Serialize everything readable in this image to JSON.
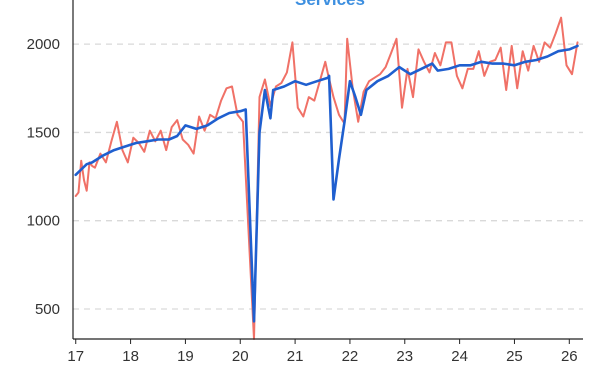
{
  "chart_data": {
    "type": "line",
    "title": "Services",
    "xlabel": "",
    "ylabel": "",
    "x_ticks": [
      17,
      18,
      19,
      20,
      21,
      22,
      23,
      24,
      25,
      26
    ],
    "y_ticks": [
      500,
      1000,
      1500,
      2000
    ],
    "xlim": [
      16.95,
      26.25
    ],
    "ylim": [
      330,
      2250
    ],
    "grid": "horizontal-dashed",
    "legend": "none",
    "series": [
      {
        "color": "#f07167",
        "values": [
          [
            17.0,
            1140
          ],
          [
            17.05,
            1160
          ],
          [
            17.1,
            1340
          ],
          [
            17.15,
            1230
          ],
          [
            17.2,
            1170
          ],
          [
            17.25,
            1330
          ],
          [
            17.3,
            1310
          ],
          [
            17.35,
            1300
          ],
          [
            17.45,
            1380
          ],
          [
            17.55,
            1330
          ],
          [
            17.65,
            1450
          ],
          [
            17.75,
            1560
          ],
          [
            17.85,
            1400
          ],
          [
            17.95,
            1330
          ],
          [
            18.05,
            1470
          ],
          [
            18.15,
            1440
          ],
          [
            18.25,
            1390
          ],
          [
            18.35,
            1510
          ],
          [
            18.45,
            1450
          ],
          [
            18.55,
            1510
          ],
          [
            18.65,
            1400
          ],
          [
            18.75,
            1530
          ],
          [
            18.85,
            1570
          ],
          [
            18.95,
            1460
          ],
          [
            19.05,
            1430
          ],
          [
            19.15,
            1380
          ],
          [
            19.25,
            1590
          ],
          [
            19.35,
            1510
          ],
          [
            19.45,
            1600
          ],
          [
            19.55,
            1580
          ],
          [
            19.65,
            1680
          ],
          [
            19.75,
            1750
          ],
          [
            19.85,
            1760
          ],
          [
            19.95,
            1600
          ],
          [
            20.05,
            1560
          ],
          [
            20.25,
            330
          ],
          [
            20.35,
            1700
          ],
          [
            20.45,
            1800
          ],
          [
            20.55,
            1650
          ],
          [
            20.65,
            1760
          ],
          [
            20.75,
            1780
          ],
          [
            20.85,
            1840
          ],
          [
            20.95,
            2010
          ],
          [
            21.05,
            1640
          ],
          [
            21.15,
            1590
          ],
          [
            21.25,
            1700
          ],
          [
            21.35,
            1680
          ],
          [
            21.45,
            1790
          ],
          [
            21.55,
            1900
          ],
          [
            21.6,
            1830
          ],
          [
            21.7,
            1700
          ],
          [
            21.8,
            1600
          ],
          [
            21.9,
            1550
          ],
          [
            21.95,
            2030
          ],
          [
            22.05,
            1750
          ],
          [
            22.15,
            1560
          ],
          [
            22.25,
            1730
          ],
          [
            22.35,
            1790
          ],
          [
            22.45,
            1810
          ],
          [
            22.55,
            1830
          ],
          [
            22.65,
            1870
          ],
          [
            22.75,
            1950
          ],
          [
            22.85,
            2030
          ],
          [
            22.95,
            1640
          ],
          [
            23.05,
            1860
          ],
          [
            23.15,
            1700
          ],
          [
            23.25,
            1970
          ],
          [
            23.35,
            1900
          ],
          [
            23.45,
            1840
          ],
          [
            23.55,
            1950
          ],
          [
            23.65,
            1880
          ],
          [
            23.75,
            2010
          ],
          [
            23.85,
            2010
          ],
          [
            23.95,
            1820
          ],
          [
            24.05,
            1750
          ],
          [
            24.15,
            1860
          ],
          [
            24.25,
            1860
          ],
          [
            24.35,
            1960
          ],
          [
            24.45,
            1820
          ],
          [
            24.55,
            1900
          ],
          [
            24.65,
            1910
          ],
          [
            24.75,
            1980
          ],
          [
            24.85,
            1740
          ],
          [
            24.95,
            1990
          ],
          [
            25.05,
            1750
          ],
          [
            25.15,
            1960
          ],
          [
            25.25,
            1850
          ],
          [
            25.35,
            1990
          ],
          [
            25.45,
            1900
          ],
          [
            25.55,
            2010
          ],
          [
            25.65,
            1980
          ],
          [
            25.75,
            2060
          ],
          [
            25.85,
            2150
          ],
          [
            25.95,
            1880
          ],
          [
            26.05,
            1830
          ],
          [
            26.15,
            2010
          ]
        ]
      },
      {
        "color": "#1f5fcf",
        "values": [
          [
            17.0,
            1260
          ],
          [
            17.1,
            1290
          ],
          [
            17.2,
            1320
          ],
          [
            17.3,
            1330
          ],
          [
            17.5,
            1370
          ],
          [
            17.7,
            1400
          ],
          [
            17.9,
            1420
          ],
          [
            18.1,
            1440
          ],
          [
            18.3,
            1450
          ],
          [
            18.5,
            1460
          ],
          [
            18.7,
            1460
          ],
          [
            18.85,
            1480
          ],
          [
            19.0,
            1540
          ],
          [
            19.2,
            1520
          ],
          [
            19.4,
            1540
          ],
          [
            19.6,
            1580
          ],
          [
            19.8,
            1610
          ],
          [
            20.0,
            1620
          ],
          [
            20.1,
            1630
          ],
          [
            20.25,
            430
          ],
          [
            20.35,
            1500
          ],
          [
            20.45,
            1740
          ],
          [
            20.55,
            1580
          ],
          [
            20.6,
            1740
          ],
          [
            20.8,
            1760
          ],
          [
            21.0,
            1790
          ],
          [
            21.2,
            1770
          ],
          [
            21.4,
            1790
          ],
          [
            21.6,
            1810
          ],
          [
            21.62,
            1820
          ],
          [
            21.7,
            1120
          ],
          [
            21.8,
            1350
          ],
          [
            21.9,
            1560
          ],
          [
            22.0,
            1790
          ],
          [
            22.1,
            1700
          ],
          [
            22.2,
            1600
          ],
          [
            22.3,
            1740
          ],
          [
            22.5,
            1790
          ],
          [
            22.7,
            1820
          ],
          [
            22.9,
            1870
          ],
          [
            23.1,
            1830
          ],
          [
            23.3,
            1860
          ],
          [
            23.5,
            1890
          ],
          [
            23.6,
            1850
          ],
          [
            23.8,
            1860
          ],
          [
            24.0,
            1880
          ],
          [
            24.2,
            1880
          ],
          [
            24.4,
            1900
          ],
          [
            24.6,
            1890
          ],
          [
            24.8,
            1890
          ],
          [
            25.0,
            1880
          ],
          [
            25.2,
            1900
          ],
          [
            25.4,
            1910
          ],
          [
            25.6,
            1930
          ],
          [
            25.8,
            1960
          ],
          [
            26.0,
            1970
          ],
          [
            26.15,
            1990
          ]
        ]
      }
    ]
  }
}
